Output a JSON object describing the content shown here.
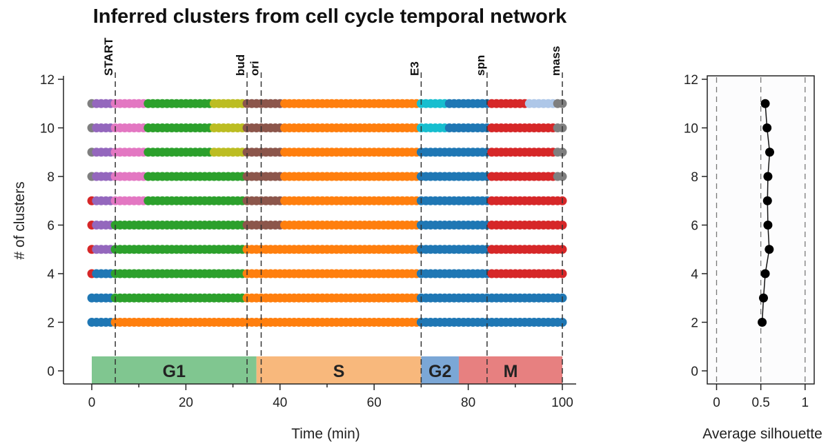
{
  "chart_data": [
    {
      "type": "scatter",
      "title": "Inferred clusters from cell cycle temporal network",
      "xlabel": "Time (min)",
      "ylabel": "# of clusters",
      "xlim": [
        -5,
        103
      ],
      "ylim": [
        -0.5,
        12
      ],
      "xticks": [
        0,
        20,
        40,
        60,
        80,
        100
      ],
      "yticks": [
        0,
        2,
        4,
        6,
        8,
        10,
        12
      ],
      "colors": {
        "blue": "#1f77b4",
        "orange": "#ff7f0e",
        "green": "#2ca02c",
        "red": "#d62728",
        "purple": "#9467bd",
        "brown": "#8c564b",
        "pink": "#e377c2",
        "gray": "#7f7f7f",
        "olive": "#bcbd22",
        "cyan": "#17becf",
        "lightblue": "#aec7e8"
      },
      "rows": [
        {
          "k": 11,
          "segments": [
            [
              0,
              1,
              "gray"
            ],
            [
              1,
              5,
              "purple"
            ],
            [
              5,
              12,
              "pink"
            ],
            [
              12,
              26,
              "green"
            ],
            [
              26,
              33,
              "olive"
            ],
            [
              33,
              41,
              "brown"
            ],
            [
              41,
              70,
              "orange"
            ],
            [
              70,
              76,
              "cyan"
            ],
            [
              76,
              85,
              "blue"
            ],
            [
              85,
              93,
              "red"
            ],
            [
              93,
              99,
              "lightblue"
            ],
            [
              99,
              100,
              "gray"
            ]
          ]
        },
        {
          "k": 10,
          "segments": [
            [
              0,
              1,
              "gray"
            ],
            [
              1,
              5,
              "purple"
            ],
            [
              5,
              12,
              "pink"
            ],
            [
              12,
              26,
              "green"
            ],
            [
              26,
              33,
              "olive"
            ],
            [
              33,
              41,
              "brown"
            ],
            [
              41,
              70,
              "orange"
            ],
            [
              70,
              76,
              "cyan"
            ],
            [
              76,
              85,
              "blue"
            ],
            [
              85,
              99,
              "red"
            ],
            [
              99,
              100,
              "gray"
            ]
          ]
        },
        {
          "k": 9,
          "segments": [
            [
              0,
              1,
              "gray"
            ],
            [
              1,
              5,
              "purple"
            ],
            [
              5,
              12,
              "pink"
            ],
            [
              12,
              26,
              "green"
            ],
            [
              26,
              33,
              "olive"
            ],
            [
              33,
              41,
              "brown"
            ],
            [
              41,
              70,
              "orange"
            ],
            [
              70,
              85,
              "blue"
            ],
            [
              85,
              99,
              "red"
            ],
            [
              99,
              100,
              "gray"
            ]
          ]
        },
        {
          "k": 8,
          "segments": [
            [
              0,
              1,
              "gray"
            ],
            [
              1,
              5,
              "purple"
            ],
            [
              5,
              12,
              "pink"
            ],
            [
              12,
              33,
              "green"
            ],
            [
              33,
              41,
              "brown"
            ],
            [
              41,
              70,
              "orange"
            ],
            [
              70,
              85,
              "blue"
            ],
            [
              85,
              99,
              "red"
            ],
            [
              99,
              100,
              "gray"
            ]
          ]
        },
        {
          "k": 7,
          "segments": [
            [
              0,
              1,
              "red"
            ],
            [
              1,
              5,
              "purple"
            ],
            [
              5,
              12,
              "pink"
            ],
            [
              12,
              33,
              "green"
            ],
            [
              33,
              41,
              "brown"
            ],
            [
              41,
              70,
              "orange"
            ],
            [
              70,
              85,
              "blue"
            ],
            [
              85,
              100,
              "red"
            ]
          ]
        },
        {
          "k": 6,
          "segments": [
            [
              0,
              1,
              "red"
            ],
            [
              1,
              5,
              "purple"
            ],
            [
              5,
              33,
              "green"
            ],
            [
              33,
              41,
              "brown"
            ],
            [
              41,
              70,
              "orange"
            ],
            [
              70,
              85,
              "blue"
            ],
            [
              85,
              100,
              "red"
            ]
          ]
        },
        {
          "k": 5,
          "segments": [
            [
              0,
              1,
              "red"
            ],
            [
              1,
              5,
              "purple"
            ],
            [
              5,
              33,
              "green"
            ],
            [
              33,
              70,
              "orange"
            ],
            [
              70,
              85,
              "blue"
            ],
            [
              85,
              100,
              "red"
            ]
          ]
        },
        {
          "k": 4,
          "segments": [
            [
              0,
              1,
              "red"
            ],
            [
              1,
              5,
              "blue"
            ],
            [
              5,
              33,
              "green"
            ],
            [
              33,
              70,
              "orange"
            ],
            [
              70,
              85,
              "blue"
            ],
            [
              85,
              100,
              "red"
            ]
          ]
        },
        {
          "k": 3,
          "segments": [
            [
              0,
              5,
              "blue"
            ],
            [
              5,
              33,
              "green"
            ],
            [
              33,
              70,
              "orange"
            ],
            [
              70,
              100,
              "blue"
            ]
          ]
        },
        {
          "k": 2,
          "segments": [
            [
              0,
              5,
              "blue"
            ],
            [
              5,
              70,
              "orange"
            ],
            [
              70,
              100,
              "blue"
            ]
          ]
        }
      ],
      "events": [
        {
          "label": "START",
          "t": 5
        },
        {
          "label": "bud",
          "t": 33
        },
        {
          "label": "ori",
          "t": 36
        },
        {
          "label": "E3",
          "t": 70
        },
        {
          "label": "spn",
          "t": 84
        },
        {
          "label": "mass",
          "t": 100
        }
      ],
      "phases": [
        {
          "label": "G1",
          "start": 0,
          "end": 35,
          "color": "#80c690"
        },
        {
          "label": "S",
          "start": 35,
          "end": 70,
          "color": "#f8b87c"
        },
        {
          "label": "G2",
          "start": 70,
          "end": 78,
          "color": "#7ba7d6"
        },
        {
          "label": "M",
          "start": 78,
          "end": 100,
          "color": "#e78080"
        }
      ]
    },
    {
      "type": "line",
      "xlabel": "Average silhouette",
      "ylabel": "",
      "xlim": [
        -0.1,
        1.1
      ],
      "ylim": [
        -0.5,
        12
      ],
      "xticks": [
        0,
        0.5,
        1
      ],
      "xtick_labels": [
        "0",
        "0.5",
        "1"
      ],
      "yticks": [
        0,
        2,
        4,
        6,
        8,
        10,
        12
      ],
      "grid": "vertical dashed at 0, 0.5, 1",
      "y": [
        11,
        10,
        9,
        8,
        7,
        6,
        5,
        4,
        3,
        2
      ],
      "x": [
        0.55,
        0.57,
        0.6,
        0.58,
        0.575,
        0.58,
        0.595,
        0.55,
        0.53,
        0.515
      ]
    }
  ]
}
